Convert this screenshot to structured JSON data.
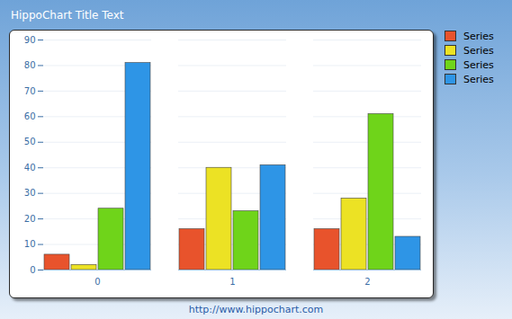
{
  "chart_data": {
    "type": "bar",
    "title": "HippoChart Title Text",
    "caption": "http://www.hippochart.com",
    "categories": [
      "0",
      "1",
      "2"
    ],
    "series": [
      {
        "name": "Series",
        "color": "#e8532c",
        "values": [
          6,
          16,
          16
        ]
      },
      {
        "name": "Series",
        "color": "#ece224",
        "values": [
          2,
          40,
          28
        ]
      },
      {
        "name": "Series",
        "color": "#6fd41a",
        "values": [
          24,
          23,
          61
        ]
      },
      {
        "name": "Series",
        "color": "#2e95e6",
        "values": [
          81,
          41,
          13
        ]
      }
    ],
    "ylim": [
      0,
      90
    ],
    "yticks": [
      0,
      10,
      20,
      30,
      40,
      50,
      60,
      70,
      80,
      90
    ],
    "grid": true,
    "legend": "top-right"
  }
}
